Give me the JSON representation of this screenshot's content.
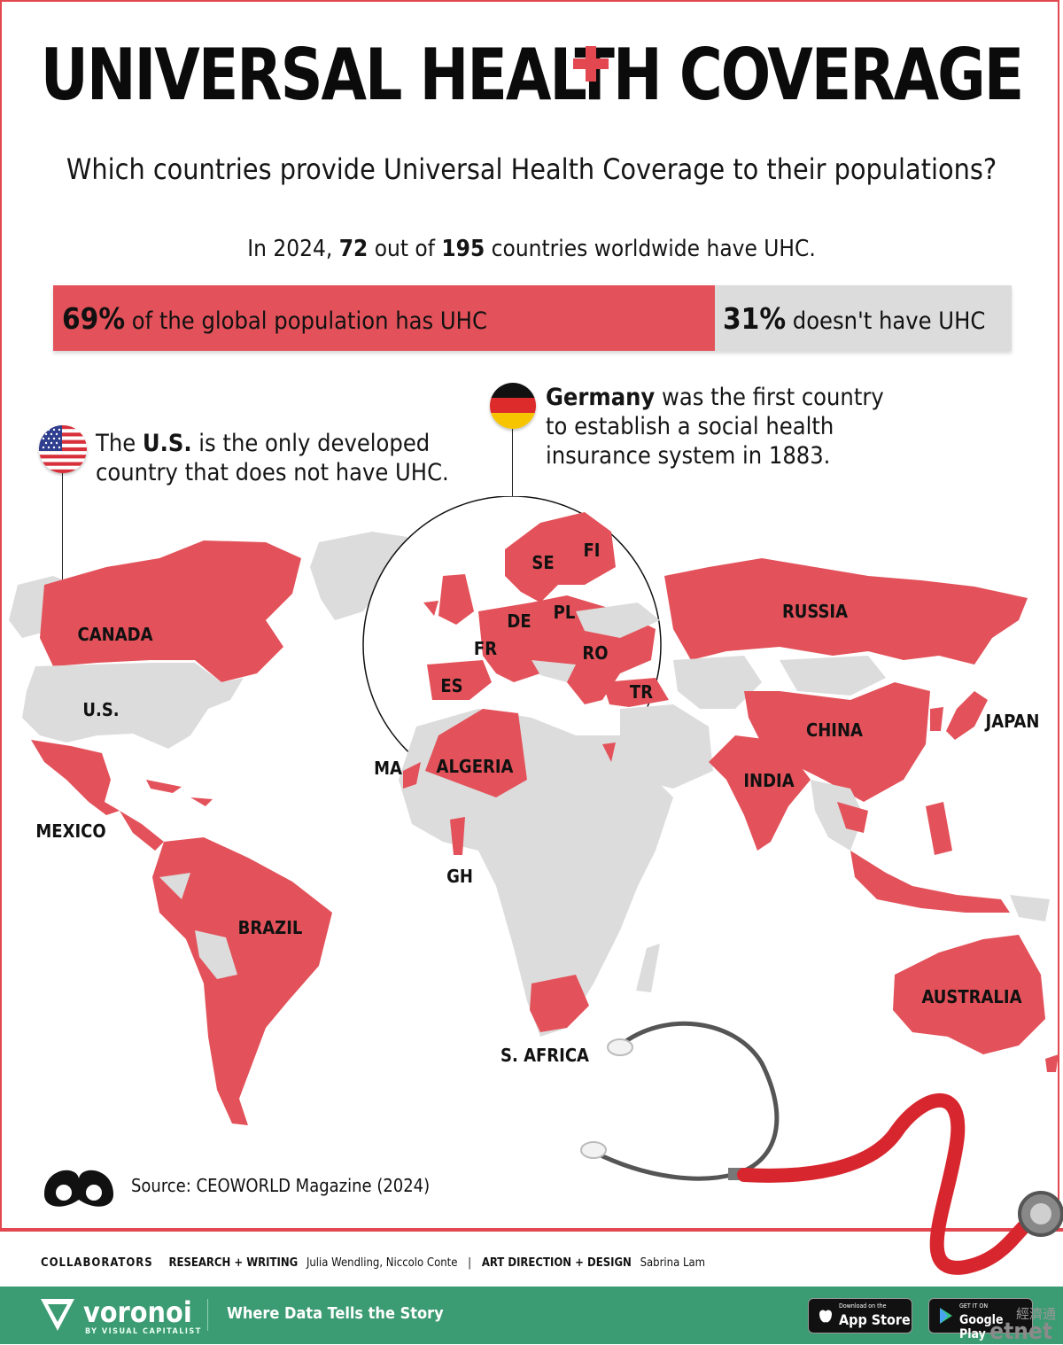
{
  "header": {
    "title": "UNIVERSAL HEALTH COVERAGE",
    "subtitle": "Which countries provide Universal Health Coverage to their populations?"
  },
  "intro": {
    "pre": "In 2024, ",
    "count": "72",
    "mid": " out of ",
    "total": "195",
    "post": " countries worldwide have UHC."
  },
  "bar": {
    "have_pct": "69%",
    "have_text": " of the global population has UHC",
    "have_fraction": 0.69,
    "not_pct": "31%",
    "not_text": " doesn't have UHC"
  },
  "callouts": {
    "us": {
      "pre": "The ",
      "bold": "U.S.",
      "line1_rest": " is the only developed",
      "line2": "country that does not have UHC."
    },
    "germany": {
      "bold": "Germany",
      "line1_rest": " was the first country",
      "line2": "to establish a social health",
      "line3": "insurance system in 1883."
    }
  },
  "map_labels": {
    "canada": "CANADA",
    "us": "U.S.",
    "mexico": "MEXICO",
    "brazil": "BRAZIL",
    "russia": "RUSSIA",
    "china": "CHINA",
    "japan": "JAPAN",
    "india": "INDIA",
    "australia": "AUSTRALIA",
    "s_africa": "S. AFRICA",
    "gh": "GH",
    "ma": "MA",
    "algeria": "ALGERIA",
    "se": "SE",
    "fi": "FI",
    "de": "DE",
    "pl": "PL",
    "fr": "FR",
    "ro": "RO",
    "es": "ES",
    "tr": "TR"
  },
  "colors": {
    "uhc": "#e3525a",
    "no_uhc": "#dcdcdc",
    "accent": "#e3474f",
    "footer": "#3b9b72"
  },
  "source": "Source: CEOWORLD Magazine (2024)",
  "collaborators": {
    "heading": "COLLABORATORS",
    "research_label": "RESEARCH + WRITING",
    "research_names": "Julia Wendling, Niccolo Conte",
    "sep": "|",
    "design_label": "ART DIRECTION + DESIGN",
    "design_names": "Sabrina Lam"
  },
  "footer": {
    "brand": "voronoi",
    "brand_sub": "BY VISUAL CAPITALIST",
    "tagline": "Where Data Tells the Story",
    "appstore_small": "Download on the",
    "appstore_big": "App Store",
    "gplay_small": "GET IT ON",
    "gplay_big": "Google Play"
  },
  "watermark": {
    "cn": "經濟通",
    "en": "etnet"
  }
}
